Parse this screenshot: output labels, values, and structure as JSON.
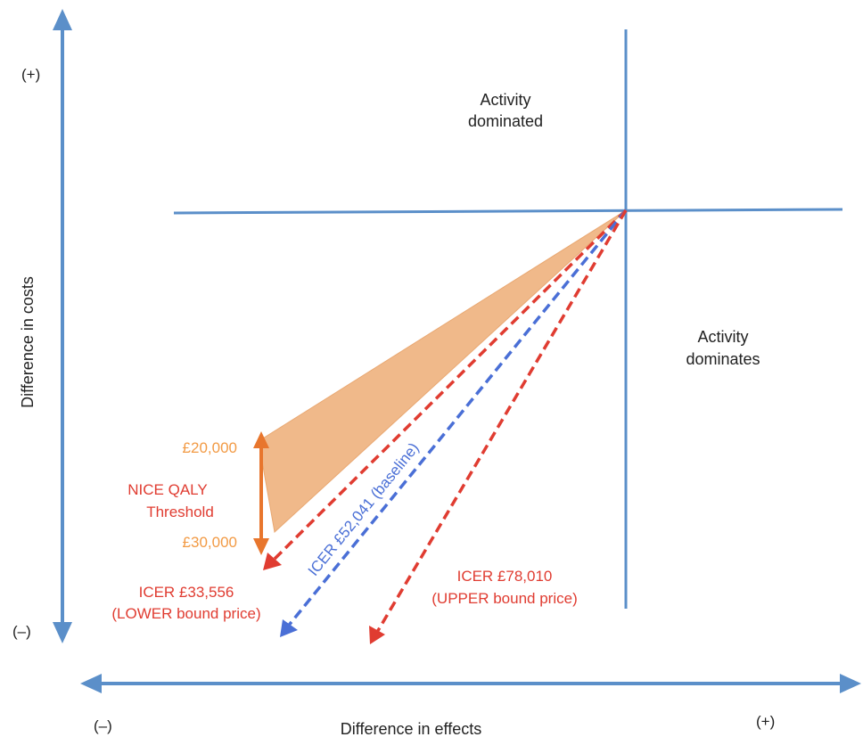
{
  "axes": {
    "y_title": "Difference in costs",
    "y_plus": "(+)",
    "y_minus": "(–)",
    "x_title": "Difference in effects",
    "x_minus": "(–)",
    "x_plus": "(+)"
  },
  "quadrants": {
    "dominated_line1": "Activity",
    "dominated_line2": "dominated",
    "dominates_line1": "Activity",
    "dominates_line2": "dominates"
  },
  "threshold": {
    "upper_value": "£20,000",
    "lower_value": "£30,000",
    "label_line1": "NICE QALY",
    "label_line2": "Threshold"
  },
  "icers": {
    "lower_line1": "ICER £33,556",
    "lower_line2": "(LOWER bound price)",
    "baseline": "ICER £52,041 (baseline)",
    "upper_line1": "ICER £78,010",
    "upper_line2": "(UPPER bound price)"
  },
  "colors": {
    "axis": "#5b8fc9",
    "band_fill": "#f0b98a",
    "orange": "#f29a44",
    "orange_arrow": "#e8762d",
    "red": "#e03c31",
    "blue": "#4a6fd6"
  }
}
